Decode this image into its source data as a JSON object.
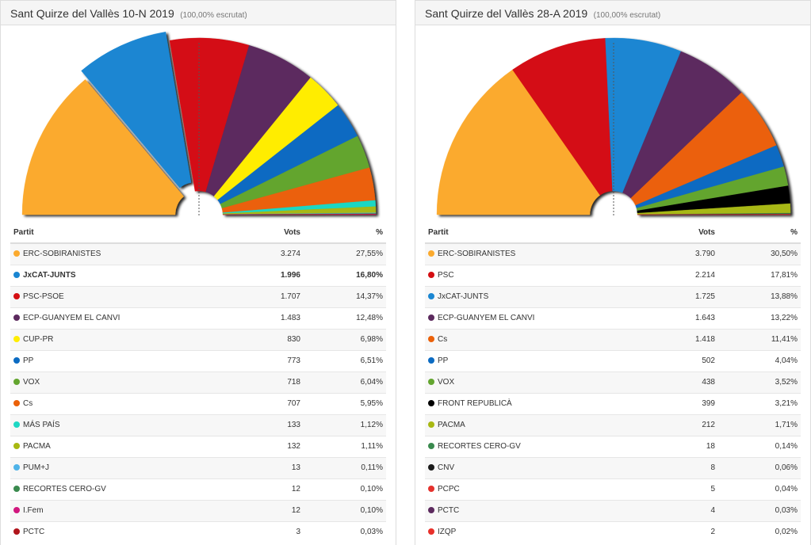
{
  "panels": [
    {
      "title": "Sant Quirze del Vallès 10-N 2019",
      "subtitle": "(100,00% escrutat)",
      "headers": {
        "party": "Partit",
        "votes": "Vots",
        "pct": "%"
      },
      "rows": [
        {
          "party": "ERC-SOBIRANISTES",
          "votes": "3.274",
          "pct": "27,55%",
          "color": "#FBAA2E",
          "bold": false
        },
        {
          "party": "JxCAT-JUNTS",
          "votes": "1.996",
          "pct": "16,80%",
          "color": "#1A86D2",
          "bold": true
        },
        {
          "party": "PSC-PSOE",
          "votes": "1.707",
          "pct": "14,37%",
          "color": "#D40E12",
          "bold": false
        },
        {
          "party": "ECP-GUANYEM EL CANVI",
          "votes": "1.483",
          "pct": "12,48%",
          "color": "#5C2A5E",
          "bold": false
        },
        {
          "party": "CUP-PR",
          "votes": "830",
          "pct": "6,98%",
          "color": "#FFED00",
          "bold": false
        },
        {
          "party": "PP",
          "votes": "773",
          "pct": "6,51%",
          "color": "#0B6BC2",
          "bold": false
        },
        {
          "party": "VOX",
          "votes": "718",
          "pct": "6,04%",
          "color": "#63A52F",
          "bold": false
        },
        {
          "party": "Cs",
          "votes": "707",
          "pct": "5,95%",
          "color": "#EB6109",
          "bold": false
        },
        {
          "party": "MÁS PAÍS",
          "votes": "133",
          "pct": "1,12%",
          "color": "#1DD7C3",
          "bold": false
        },
        {
          "party": "PACMA",
          "votes": "132",
          "pct": "1,11%",
          "color": "#A8B812",
          "bold": false
        },
        {
          "party": "PUM+J",
          "votes": "13",
          "pct": "0,11%",
          "color": "#4FB3E8",
          "bold": false
        },
        {
          "party": "RECORTES CERO-GV",
          "votes": "12",
          "pct": "0,10%",
          "color": "#3A8A4E",
          "bold": false
        },
        {
          "party": "I.Fem",
          "votes": "12",
          "pct": "0,10%",
          "color": "#D1177E",
          "bold": false
        },
        {
          "party": "PCTC",
          "votes": "3",
          "pct": "0,03%",
          "color": "#B0141B",
          "bold": false
        }
      ]
    },
    {
      "title": "Sant Quirze del Vallès 28-A 2019",
      "subtitle": "(100,00% escrutat)",
      "headers": {
        "party": "Partit",
        "votes": "Vots",
        "pct": "%"
      },
      "rows": [
        {
          "party": "ERC-SOBIRANISTES",
          "votes": "3.790",
          "pct": "30,50%",
          "color": "#FBAA2E",
          "bold": false
        },
        {
          "party": "PSC",
          "votes": "2.214",
          "pct": "17,81%",
          "color": "#D40E12",
          "bold": false
        },
        {
          "party": "JxCAT-JUNTS",
          "votes": "1.725",
          "pct": "13,88%",
          "color": "#1A86D2",
          "bold": false
        },
        {
          "party": "ECP-GUANYEM EL CANVI",
          "votes": "1.643",
          "pct": "13,22%",
          "color": "#5C2A5E",
          "bold": false
        },
        {
          "party": "Cs",
          "votes": "1.418",
          "pct": "11,41%",
          "color": "#EB6109",
          "bold": false
        },
        {
          "party": "PP",
          "votes": "502",
          "pct": "4,04%",
          "color": "#0B6BC2",
          "bold": false
        },
        {
          "party": "VOX",
          "votes": "438",
          "pct": "3,52%",
          "color": "#63A52F",
          "bold": false
        },
        {
          "party": "FRONT REPUBLICÀ",
          "votes": "399",
          "pct": "3,21%",
          "color": "#000000",
          "bold": false
        },
        {
          "party": "PACMA",
          "votes": "212",
          "pct": "1,71%",
          "color": "#A8B812",
          "bold": false
        },
        {
          "party": "RECORTES CERO-GV",
          "votes": "18",
          "pct": "0,14%",
          "color": "#3A8A4E",
          "bold": false
        },
        {
          "party": "CNV",
          "votes": "8",
          "pct": "0,06%",
          "color": "#1a1a1a",
          "bold": false
        },
        {
          "party": "PCPC",
          "votes": "5",
          "pct": "0,04%",
          "color": "#E5322D",
          "bold": false
        },
        {
          "party": "PCTC",
          "votes": "4",
          "pct": "0,03%",
          "color": "#5C2A5E",
          "bold": false
        },
        {
          "party": "IZQP",
          "votes": "2",
          "pct": "0,02%",
          "color": "#E8302A",
          "bold": false
        }
      ]
    }
  ],
  "chart_data": [
    {
      "type": "pie",
      "categories": [
        "ERC-SOBIRANISTES",
        "JxCAT-JUNTS",
        "PSC-PSOE",
        "ECP-GUANYEM EL CANVI",
        "CUP-PR",
        "PP",
        "VOX",
        "Cs",
        "MÁS PAÍS",
        "PACMA",
        "PUM+J",
        "RECORTES CERO-GV",
        "I.Fem",
        "PCTC"
      ],
      "values": [
        27.55,
        16.8,
        14.37,
        12.48,
        6.98,
        6.51,
        6.04,
        5.95,
        1.12,
        1.11,
        0.11,
        0.1,
        0.1,
        0.03
      ],
      "colors": [
        "#FBAA2E",
        "#1A86D2",
        "#D40E12",
        "#5C2A5E",
        "#FFED00",
        "#0B6BC2",
        "#63A52F",
        "#EB6109",
        "#1DD7C3",
        "#A8B812",
        "#4FB3E8",
        "#3A8A4E",
        "#D1177E",
        "#B0141B"
      ],
      "exploded": "JxCAT-JUNTS"
    },
    {
      "type": "pie",
      "categories": [
        "ERC-SOBIRANISTES",
        "PSC",
        "JxCAT-JUNTS",
        "ECP-GUANYEM EL CANVI",
        "Cs",
        "PP",
        "VOX",
        "FRONT REPUBLICÀ",
        "PACMA",
        "RECORTES CERO-GV",
        "CNV",
        "PCPC",
        "PCTC",
        "IZQP"
      ],
      "values": [
        30.5,
        17.81,
        13.88,
        13.22,
        11.41,
        4.04,
        3.52,
        3.21,
        1.71,
        0.14,
        0.06,
        0.04,
        0.03,
        0.02
      ],
      "colors": [
        "#FBAA2E",
        "#D40E12",
        "#1A86D2",
        "#5C2A5E",
        "#EB6109",
        "#0B6BC2",
        "#63A52F",
        "#000000",
        "#A8B812",
        "#3A8A4E",
        "#1a1a1a",
        "#E5322D",
        "#5C2A5E",
        "#E8302A"
      ],
      "exploded": ""
    }
  ]
}
